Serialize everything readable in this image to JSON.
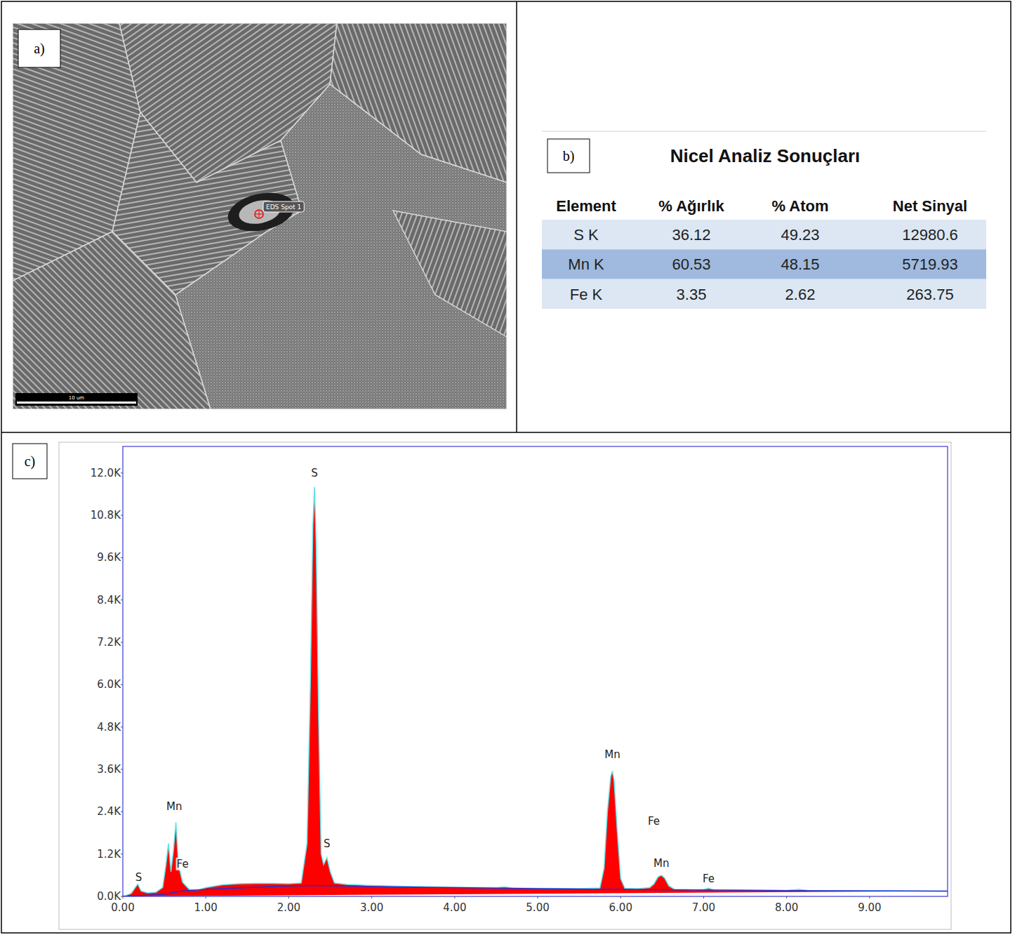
{
  "panel_a": {
    "label": "a)",
    "spot_label": "EDS Spot 1",
    "scale_bar": "10 um"
  },
  "panel_b": {
    "label": "b)",
    "table": {
      "title": "Nicel Analiz Sonuçları",
      "columns": [
        "Element",
        "% Ağırlık",
        "% Atom",
        "Net Sinyal"
      ],
      "rows": [
        [
          "S K",
          36.12,
          49.23,
          12980.6
        ],
        [
          "Mn K",
          60.53,
          48.15,
          5719.93
        ],
        [
          "Fe K",
          3.35,
          2.62,
          263.75
        ]
      ]
    }
  },
  "chart_data": {
    "type": "area",
    "label": "c)",
    "xlim": [
      0,
      9.94
    ],
    "ylim": [
      0,
      12750
    ],
    "xticks": [
      {
        "value": 0,
        "label": "0.00"
      },
      {
        "value": 1,
        "label": "1.00"
      },
      {
        "value": 2,
        "label": "2.00"
      },
      {
        "value": 3,
        "label": "3.00"
      },
      {
        "value": 4,
        "label": "4.00"
      },
      {
        "value": 5,
        "label": "5.00"
      },
      {
        "value": 6,
        "label": "6.00"
      },
      {
        "value": 7,
        "label": "7.00"
      },
      {
        "value": 8,
        "label": "8.00"
      },
      {
        "value": 9,
        "label": "9.00"
      }
    ],
    "yticks": [
      {
        "value": 0,
        "label": "0.0K"
      },
      {
        "value": 1200,
        "label": "1.2K"
      },
      {
        "value": 2400,
        "label": "2.4K"
      },
      {
        "value": 3600,
        "label": "3.6K"
      },
      {
        "value": 4800,
        "label": "4.8K"
      },
      {
        "value": 6000,
        "label": "6.0K"
      },
      {
        "value": 7200,
        "label": "7.2K"
      },
      {
        "value": 8400,
        "label": "8.4K"
      },
      {
        "value": 9600,
        "label": "9.6K"
      },
      {
        "value": 10800,
        "label": "10.8K"
      },
      {
        "value": 12000,
        "label": "12.0K"
      }
    ],
    "grid": false,
    "series": [
      {
        "type": "area",
        "color": "#ff0000",
        "x": [
          0.0,
          0.1,
          0.15,
          0.18,
          0.22,
          0.3,
          0.4,
          0.48,
          0.52,
          0.55,
          0.58,
          0.61,
          0.64,
          0.67,
          0.72,
          0.8,
          0.9,
          1.0,
          1.2,
          1.4,
          1.6,
          1.8,
          2.0,
          2.15,
          2.22,
          2.26,
          2.29,
          2.31,
          2.33,
          2.36,
          2.39,
          2.42,
          2.46,
          2.5,
          2.55,
          2.7,
          3.0,
          3.5,
          4.0,
          4.5,
          4.6,
          4.7,
          5.0,
          5.5,
          5.75,
          5.8,
          5.84,
          5.88,
          5.9,
          5.92,
          5.96,
          6.0,
          6.05,
          6.2,
          6.35,
          6.4,
          6.45,
          6.49,
          6.53,
          6.58,
          6.65,
          6.9,
          7.0,
          7.06,
          7.12,
          7.5,
          8.0,
          8.15,
          8.25,
          8.5,
          9.0,
          9.5,
          9.94
        ],
        "values": [
          0,
          80,
          250,
          350,
          150,
          100,
          120,
          250,
          900,
          1500,
          700,
          1300,
          2100,
          900,
          400,
          200,
          180,
          250,
          330,
          360,
          370,
          370,
          360,
          380,
          1500,
          6000,
          10500,
          11600,
          10000,
          5000,
          1200,
          900,
          1100,
          700,
          380,
          340,
          310,
          280,
          260,
          250,
          270,
          240,
          230,
          220,
          240,
          800,
          2400,
          3400,
          3550,
          3300,
          1800,
          500,
          230,
          220,
          250,
          350,
          550,
          600,
          520,
          300,
          200,
          190,
          200,
          230,
          190,
          180,
          170,
          200,
          170,
          165,
          160,
          155,
          150
        ]
      },
      {
        "type": "line",
        "color": "#2b2bd1",
        "x": [
          0.0,
          0.5,
          0.7,
          1.0,
          2.0,
          2.3,
          3.0,
          4.0,
          5.0,
          6.0,
          7.0,
          8.0,
          9.94
        ],
        "values": [
          0,
          60,
          150,
          200,
          300,
          310,
          280,
          250,
          220,
          200,
          180,
          165,
          150
        ]
      }
    ],
    "annotations": [
      {
        "text": "S",
        "x": 0.19,
        "y": 440
      },
      {
        "text": "Mn",
        "x": 0.62,
        "y": 2450
      },
      {
        "text": "Fe",
        "x": 0.72,
        "y": 820
      },
      {
        "text": "S",
        "x": 2.31,
        "y": 11900
      },
      {
        "text": "S",
        "x": 2.46,
        "y": 1400
      },
      {
        "text": "Mn",
        "x": 5.9,
        "y": 3920
      },
      {
        "text": "Fe",
        "x": 6.4,
        "y": 2030
      },
      {
        "text": "Mn",
        "x": 6.49,
        "y": 840
      },
      {
        "text": "Fe",
        "x": 7.06,
        "y": 400
      }
    ]
  }
}
